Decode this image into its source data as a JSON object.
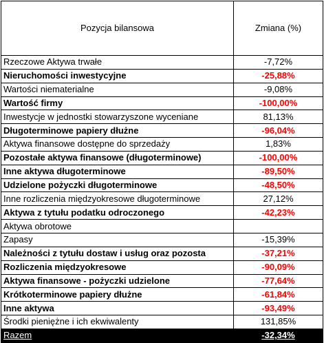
{
  "table": {
    "header": [
      "Pozycja bilansowa",
      "Zmiana (%)"
    ],
    "rows": [
      {
        "label": "Rzeczowe Aktywa trwałe",
        "value": "-7,72%",
        "bold": false
      },
      {
        "label": "Nieruchomości inwestycyjne",
        "value": "-25,88%",
        "bold": true
      },
      {
        "label": "Wartości niematerialne",
        "value": "-9,08%",
        "bold": false
      },
      {
        "label": "Wartość firmy",
        "value": "-100,00%",
        "bold": true
      },
      {
        "label": "Inwestycje w jednostki stowarzyszone wyceniane",
        "value": "81,13%",
        "bold": false
      },
      {
        "label": "Długoterminowe papiery dłużne",
        "value": "-96,04%",
        "bold": true
      },
      {
        "label": "Aktywa finansowe dostępne do sprzedaży",
        "value": "1,83%",
        "bold": false
      },
      {
        "label": "Pozostałe aktywa finansowe (długoterminowe)",
        "value": "-100,00%",
        "bold": true
      },
      {
        "label": "Inne aktywa długoterminowe",
        "value": "-89,50%",
        "bold": true
      },
      {
        "label": "Udzielone pożyczki długoterminowe",
        "value": "-48,50%",
        "bold": true
      },
      {
        "label": "Inne rozliczenia międzyokresowe długoterminowe",
        "value": "27,12%",
        "bold": false
      },
      {
        "label": "Aktywa z tytułu podatku odroczonego",
        "value": "-42,23%",
        "bold": true
      },
      {
        "label": "Aktywa obrotowe",
        "bold": false
      },
      {
        "label": "Zapasy",
        "value": "-15,39%",
        "bold": false
      },
      {
        "label": "Należności z tytułu dostaw i usług oraz pozosta",
        "value": "-37,21%",
        "bold": true
      },
      {
        "label": "Rozliczenia międzyokresowe",
        "value": "-90,09%",
        "bold": true
      },
      {
        "label": "Aktywa finansowe - pożyczki udzielone",
        "value": "-77,64%",
        "bold": true
      },
      {
        "label": "Krótkoterminowe papiery dłużne",
        "value": "-61,84%",
        "bold": true
      },
      {
        "label": "Inne aktywa",
        "value": "-93,49%",
        "bold": true
      },
      {
        "label": "Środki pieniężne i ich ekwiwalenty",
        "value": "131,85%",
        "bold": false
      }
    ],
    "total": {
      "label": "Razem",
      "value": "-32,34%"
    }
  }
}
